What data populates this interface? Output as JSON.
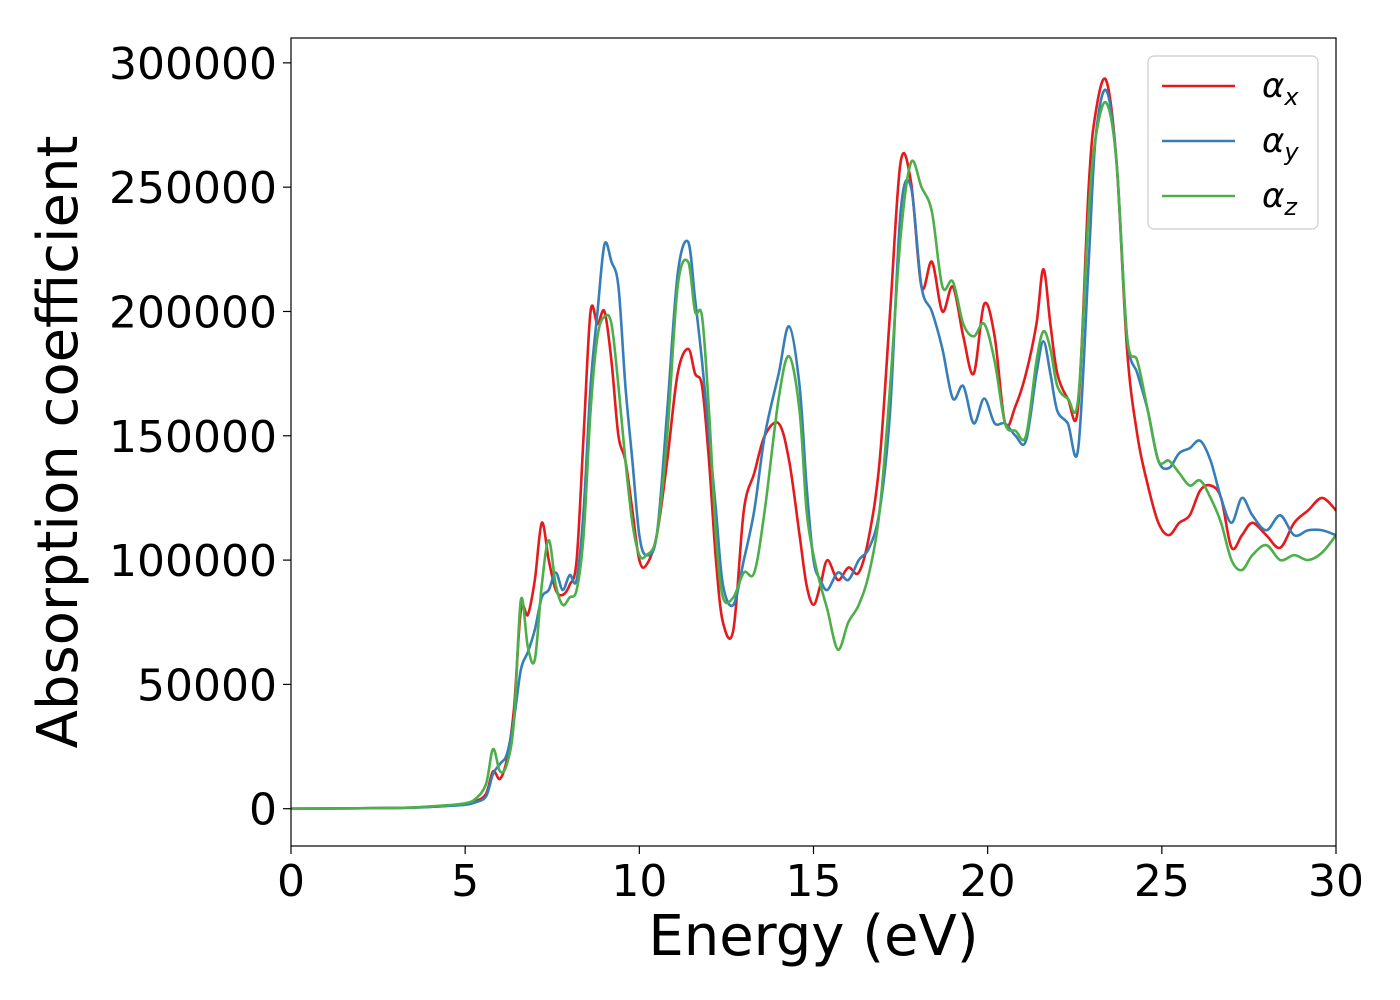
{
  "chart_data": {
    "type": "line",
    "title": "",
    "xlabel": "Energy (eV)",
    "ylabel": "Absorption coefficient",
    "xlim": [
      0,
      30
    ],
    "ylim": [
      -15000,
      310000
    ],
    "xticks": [
      0,
      5,
      10,
      15,
      20,
      25,
      30
    ],
    "yticks": [
      0,
      50000,
      100000,
      150000,
      200000,
      250000,
      300000
    ],
    "grid": false,
    "legend_position": "top-right",
    "series": [
      {
        "name": "α",
        "subscript": "x",
        "color": "#e41a1c",
        "x": [
          0,
          3,
          4,
          4.5,
          5,
          5.3,
          5.6,
          5.8,
          6.0,
          6.2,
          6.4,
          6.6,
          6.8,
          7.0,
          7.2,
          7.4,
          7.6,
          7.8,
          8.0,
          8.2,
          8.4,
          8.6,
          8.8,
          9.0,
          9.2,
          9.4,
          9.6,
          9.8,
          10.0,
          10.2,
          10.5,
          10.8,
          11.1,
          11.4,
          11.6,
          11.8,
          12.0,
          12.2,
          12.4,
          12.7,
          13.0,
          13.3,
          13.6,
          14.0,
          14.3,
          14.6,
          14.8,
          15.0,
          15.2,
          15.4,
          15.7,
          16.0,
          16.3,
          16.6,
          16.9,
          17.2,
          17.5,
          17.8,
          18.1,
          18.4,
          18.7,
          19.0,
          19.3,
          19.6,
          19.9,
          20.2,
          20.5,
          20.8,
          21.1,
          21.4,
          21.6,
          21.8,
          22.0,
          22.3,
          22.6,
          22.9,
          23.1,
          23.4,
          23.7,
          24.0,
          24.3,
          24.6,
          24.9,
          25.2,
          25.5,
          25.8,
          26.1,
          26.4,
          26.7,
          27.0,
          27.3,
          27.6,
          28.0,
          28.4,
          28.8,
          29.2,
          29.6,
          30.0
        ],
        "y": [
          0,
          300,
          800,
          1200,
          1800,
          3000,
          6000,
          15000,
          12000,
          20000,
          40000,
          80000,
          78000,
          92000,
          115000,
          100000,
          88000,
          86000,
          90000,
          100000,
          150000,
          200000,
          195000,
          200000,
          180000,
          150000,
          140000,
          120000,
          100000,
          98000,
          110000,
          140000,
          175000,
          185000,
          175000,
          170000,
          140000,
          100000,
          75000,
          72000,
          120000,
          135000,
          150000,
          155000,
          140000,
          110000,
          90000,
          82000,
          90000,
          100000,
          92000,
          97000,
          95000,
          110000,
          140000,
          200000,
          260000,
          252000,
          210000,
          220000,
          200000,
          210000,
          190000,
          175000,
          203000,
          190000,
          155000,
          162000,
          175000,
          195000,
          217000,
          195000,
          175000,
          165000,
          162000,
          250000,
          280000,
          293000,
          260000,
          185000,
          150000,
          130000,
          115000,
          110000,
          115000,
          118000,
          128000,
          130000,
          125000,
          105000,
          110000,
          115000,
          110000,
          105000,
          115000,
          120000,
          125000,
          120000
        ]
      },
      {
        "name": "α",
        "subscript": "y",
        "color": "#377eb8",
        "x": [
          0,
          3,
          4,
          4.5,
          5,
          5.3,
          5.6,
          5.8,
          6.0,
          6.2,
          6.4,
          6.6,
          6.8,
          7.0,
          7.2,
          7.4,
          7.6,
          7.8,
          8.0,
          8.2,
          8.4,
          8.6,
          8.8,
          9.0,
          9.2,
          9.4,
          9.6,
          9.8,
          10.0,
          10.2,
          10.5,
          10.8,
          11.1,
          11.4,
          11.6,
          11.8,
          12.0,
          12.2,
          12.4,
          12.7,
          13.0,
          13.3,
          13.6,
          14.0,
          14.3,
          14.6,
          14.8,
          15.0,
          15.2,
          15.4,
          15.7,
          16.0,
          16.3,
          16.6,
          16.9,
          17.2,
          17.5,
          17.8,
          18.1,
          18.4,
          18.7,
          19.0,
          19.3,
          19.6,
          19.9,
          20.2,
          20.5,
          20.8,
          21.1,
          21.4,
          21.6,
          21.8,
          22.0,
          22.3,
          22.6,
          22.9,
          23.1,
          23.4,
          23.7,
          24.0,
          24.3,
          24.6,
          24.9,
          25.2,
          25.5,
          25.8,
          26.1,
          26.4,
          26.7,
          27.0,
          27.3,
          27.6,
          28.0,
          28.4,
          28.8,
          29.2,
          29.6,
          30.0
        ],
        "y": [
          0,
          300,
          700,
          1100,
          1600,
          2600,
          5000,
          14000,
          18000,
          22000,
          36000,
          56000,
          63000,
          72000,
          85000,
          88000,
          95000,
          88000,
          94000,
          92000,
          120000,
          170000,
          200000,
          227000,
          220000,
          210000,
          170000,
          140000,
          110000,
          102000,
          110000,
          160000,
          215000,
          228000,
          205000,
          180000,
          150000,
          120000,
          90000,
          82000,
          100000,
          120000,
          150000,
          175000,
          194000,
          170000,
          130000,
          100000,
          92000,
          88000,
          95000,
          92000,
          100000,
          105000,
          120000,
          160000,
          240000,
          250000,
          210000,
          200000,
          185000,
          165000,
          170000,
          155000,
          165000,
          155000,
          155000,
          150000,
          148000,
          175000,
          188000,
          175000,
          160000,
          155000,
          145000,
          220000,
          270000,
          289000,
          260000,
          190000,
          175000,
          160000,
          140000,
          137000,
          143000,
          145000,
          148000,
          140000,
          125000,
          115000,
          125000,
          118000,
          112000,
          118000,
          110000,
          112000,
          112000,
          110000
        ]
      },
      {
        "name": "α",
        "subscript": "z",
        "color": "#4daf4a",
        "x": [
          0,
          3,
          4,
          4.5,
          5,
          5.3,
          5.6,
          5.8,
          6.0,
          6.2,
          6.4,
          6.6,
          6.8,
          7.0,
          7.2,
          7.4,
          7.6,
          7.8,
          8.0,
          8.2,
          8.4,
          8.6,
          8.8,
          9.0,
          9.2,
          9.4,
          9.6,
          9.8,
          10.0,
          10.2,
          10.5,
          10.8,
          11.1,
          11.4,
          11.6,
          11.8,
          12.0,
          12.2,
          12.4,
          12.7,
          13.0,
          13.3,
          13.6,
          14.0,
          14.3,
          14.6,
          14.8,
          15.0,
          15.2,
          15.4,
          15.7,
          16.0,
          16.3,
          16.6,
          16.9,
          17.2,
          17.5,
          17.8,
          18.1,
          18.4,
          18.7,
          19.0,
          19.3,
          19.6,
          19.9,
          20.2,
          20.5,
          20.8,
          21.1,
          21.4,
          21.6,
          21.8,
          22.0,
          22.3,
          22.6,
          22.9,
          23.1,
          23.4,
          23.7,
          24.0,
          24.3,
          24.6,
          24.9,
          25.2,
          25.5,
          25.8,
          26.1,
          26.4,
          26.7,
          27.0,
          27.3,
          27.6,
          28.0,
          28.4,
          28.8,
          29.2,
          29.6,
          30.0
        ],
        "y": [
          0,
          300,
          900,
          1400,
          2200,
          4000,
          10000,
          24000,
          15000,
          18000,
          35000,
          84000,
          65000,
          60000,
          90000,
          108000,
          90000,
          82000,
          85000,
          88000,
          110000,
          160000,
          190000,
          198000,
          195000,
          170000,
          140000,
          115000,
          102000,
          102000,
          110000,
          150000,
          210000,
          220000,
          200000,
          198000,
          160000,
          110000,
          85000,
          85000,
          95000,
          95000,
          120000,
          165000,
          182000,
          160000,
          120000,
          102000,
          90000,
          80000,
          64000,
          75000,
          82000,
          95000,
          120000,
          170000,
          230000,
          260000,
          250000,
          240000,
          210000,
          212000,
          195000,
          190000,
          195000,
          180000,
          155000,
          152000,
          150000,
          180000,
          192000,
          185000,
          170000,
          165000,
          165000,
          240000,
          270000,
          284000,
          260000,
          190000,
          180000,
          160000,
          140000,
          140000,
          135000,
          130000,
          132000,
          125000,
          115000,
          100000,
          96000,
          102000,
          106000,
          100000,
          102000,
          100000,
          103000,
          110000
        ]
      }
    ]
  }
}
